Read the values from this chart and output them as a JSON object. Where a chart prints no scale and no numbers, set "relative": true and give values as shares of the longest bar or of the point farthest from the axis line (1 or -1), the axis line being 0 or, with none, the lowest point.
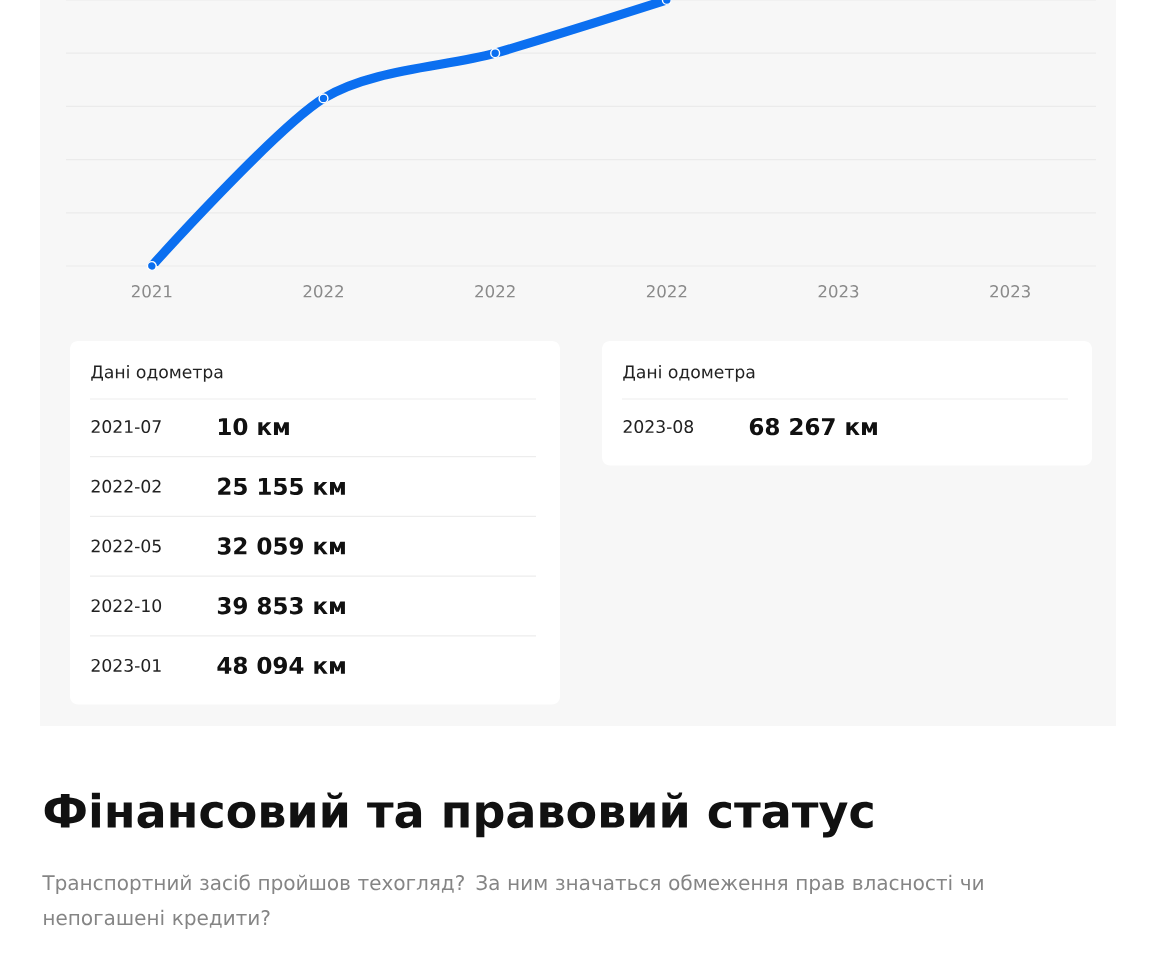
{
  "chart_data": [
    {
      "type": "line",
      "categories": [
        "2021",
        "2022",
        "2022",
        "2022",
        "2023",
        "2023"
      ],
      "values": [
        0,
        0.63,
        0.8,
        1,
        null,
        null
      ],
      "relative": true,
      "color": "#0b6ff0",
      "grid": "y",
      "tick_labels": "x",
      "marker": "circle",
      "line_style": "solid"
    },
    {
      "type": "other",
      "title": "Дані одометра",
      "categories": [
        "2021-07",
        "2022-02",
        "2022-05",
        "2022-10",
        "2023-01"
      ],
      "values": [
        10,
        25155,
        32059,
        39853,
        48094
      ],
      "value_labels": [
        "10 км",
        "25 155 км",
        "32 059 км",
        "39 853 км",
        "48 094 км"
      ]
    },
    {
      "type": "other",
      "title": "Дані одометра",
      "categories": [
        "2023-08"
      ],
      "values": [
        68267
      ],
      "value_labels": [
        "68 267 км"
      ]
    },
    {
      "type": "other",
      "title": "Фінансовий та правовий статус",
      "subtitle": "Транспортний засіб пройшов техогляд? За ним значаться обмеження прав власності чи непогашені кредити?"
    }
  ]
}
